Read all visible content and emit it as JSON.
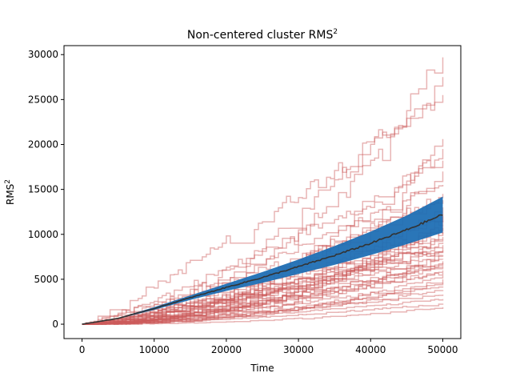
{
  "chart_data": {
    "type": "line",
    "title": "Non-centered cluster RMS",
    "title_superscript": "2",
    "xlabel": "Time",
    "ylabel": "RMS",
    "ylabel_superscript": "2",
    "xlim": [
      -2500,
      52500
    ],
    "ylim": [
      -1600,
      31000
    ],
    "xticks": [
      0,
      10000,
      20000,
      30000,
      40000,
      50000
    ],
    "yticks": [
      0,
      5000,
      10000,
      15000,
      20000,
      25000,
      30000
    ],
    "grid": false,
    "legend": "none",
    "colors": {
      "trajectories": "#cd5c5c",
      "band": "#1f6fb4",
      "mean": "#333333"
    },
    "band": {
      "x": [
        0,
        5000,
        10000,
        15000,
        20000,
        25000,
        30000,
        35000,
        40000,
        45000,
        50000
      ],
      "lower": [
        0,
        600,
        1600,
        2700,
        3700,
        4600,
        5600,
        6600,
        7700,
        8900,
        10200
      ],
      "upper": [
        0,
        700,
        1900,
        3200,
        4500,
        5800,
        7200,
        8700,
        10300,
        12100,
        14200
      ]
    },
    "mean": {
      "x": [
        0,
        5000,
        10000,
        15000,
        20000,
        25000,
        30000,
        35000,
        40000,
        45000,
        50000
      ],
      "y": [
        0,
        650,
        1750,
        2950,
        4100,
        5200,
        6400,
        7650,
        9000,
        10500,
        12200
      ]
    },
    "trajectory_endpoints": [
      29700,
      27500,
      25500,
      20600,
      19500,
      18200,
      17000,
      15500,
      14500,
      13800,
      13000,
      12500,
      12000,
      11500,
      11000,
      10700,
      10300,
      10000,
      9700,
      9400,
      9100,
      8800,
      8500,
      8200,
      8000,
      7700,
      7500,
      7200,
      7000,
      6800,
      6500,
      6300,
      6000,
      5700,
      5400,
      5000,
      4600,
      4200,
      3800,
      3300,
      2800,
      2300,
      1900
    ]
  }
}
